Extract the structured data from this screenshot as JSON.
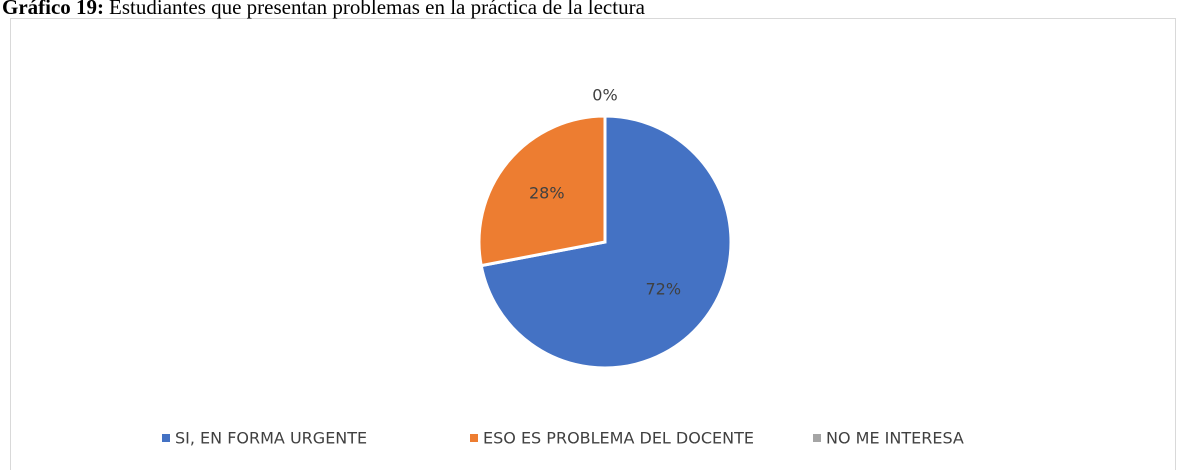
{
  "chart_data": {
    "type": "pie",
    "title_label": "Gráfico 19:",
    "title": "Estudiantes que presentan problemas en la práctica de la lectura",
    "categories": [
      "SI, EN FORMA URGENTE",
      "ESO ES PROBLEMA DEL DOCENTE",
      "NO ME INTERESA"
    ],
    "values": [
      72,
      28,
      0
    ],
    "value_labels": [
      "72%",
      "28%",
      "0%"
    ],
    "colors": [
      "#4472c4",
      "#ed7d31",
      "#a5a5a5"
    ],
    "legend": "bottom"
  }
}
